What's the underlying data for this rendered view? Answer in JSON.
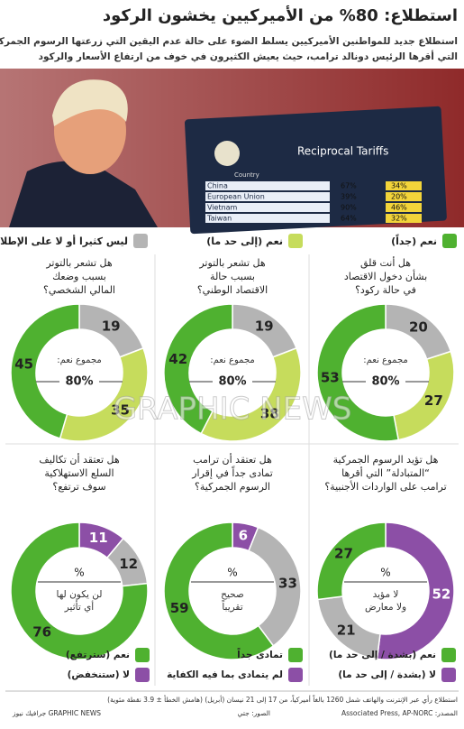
{
  "header": {
    "title": "استطلاع: 80% من الأميركيين يخشون الركود",
    "subtitle": [
      "استطلاع جديد للمواطنين الأميركيين يسلط الضوء على حالة عدم اليقين التي زرعتها الرسوم الجمركية المثيرة للجدل",
      "التي أقرها الرئيس دونالد ترامب، حيث يعيش الكثيرون في خوف من ارتفاع الأسعار والركود"
    ]
  },
  "photo": {
    "board_title": "Reciprocal Tariffs",
    "header": "Country",
    "rows": [
      [
        "China",
        "67%",
        "34%"
      ],
      [
        "European Union",
        "39%",
        "20%"
      ],
      [
        "Vietnam",
        "90%",
        "46%"
      ],
      [
        "Taiwan",
        "64%",
        "32%"
      ]
    ]
  },
  "watermark": "GRAPHIC NEWS",
  "legend_top": [
    {
      "label": "نعم (جداً)",
      "color": "#4fb130"
    },
    {
      "label": "نعم (إلى حد ما)",
      "color": "#c6dc5c"
    },
    {
      "label": "ليس كثيرا أو لا على الإطلاق",
      "color": "#b4b4b4"
    }
  ],
  "donuts": [
    {
      "question": [
        "هل أنت قلق",
        "بشأن دخول الاقتصاد",
        "في حالة ركود؟"
      ],
      "center": [
        "مجموع نعم:",
        "80%"
      ],
      "slices": [
        {
          "value": 20,
          "color": "#b4b4b4"
        },
        {
          "value": 27,
          "color": "#c6dc5c"
        },
        {
          "value": 53,
          "color": "#4fb130"
        }
      ]
    },
    {
      "question": [
        "هل تشعر بالتوتر",
        "بسبب حالة",
        "الاقتصاد الوطني؟"
      ],
      "center": [
        "مجموع نعم:",
        "80%"
      ],
      "slices": [
        {
          "value": 19,
          "color": "#b4b4b4"
        },
        {
          "value": 38,
          "color": "#c6dc5c"
        },
        {
          "value": 42,
          "color": "#4fb130"
        }
      ]
    },
    {
      "question": [
        "هل تشعر بالتوتر",
        "بسبب وضعك",
        "المالي الشخصي؟"
      ],
      "center": [
        "مجموع نعم:",
        "80%"
      ],
      "slices": [
        {
          "value": 19,
          "color": "#b4b4b4"
        },
        {
          "value": 35,
          "color": "#c6dc5c"
        },
        {
          "value": 45,
          "color": "#4fb130"
        }
      ]
    },
    {
      "question": [
        "هل تؤيد الرسوم الجمركية",
        "“المتبادلة” التي أقرها",
        "ترامب على الواردات الأجنبية؟"
      ],
      "center": [
        "%",
        "لا مؤيد",
        "ولا معارض"
      ],
      "slices": [
        {
          "value": 52,
          "color": "#8c4fa6"
        },
        {
          "value": 21,
          "color": "#b4b4b4"
        },
        {
          "value": 27,
          "color": "#4fb130"
        }
      ],
      "legend": [
        {
          "label": "نعم (بشدة / إلى حد ما)",
          "color": "#4fb130"
        },
        {
          "label": "لا (بشدة / إلى حد ما)",
          "color": "#8c4fa6"
        }
      ]
    },
    {
      "question": [
        "هل تعتقد أن ترامب",
        "تمادى جداً في إقرار",
        "الرسوم الجمركية؟"
      ],
      "center": [
        "%",
        "صحيح",
        "تقريباً"
      ],
      "slices": [
        {
          "value": 6,
          "color": "#8c4fa6"
        },
        {
          "value": 33,
          "color": "#b4b4b4"
        },
        {
          "value": 59,
          "color": "#4fb130"
        }
      ],
      "legend": [
        {
          "label": "تمادى جداً",
          "color": "#4fb130"
        },
        {
          "label": "لم يتمادى بما فيه الكفاية",
          "color": "#8c4fa6"
        }
      ]
    },
    {
      "question": [
        "هل تعتقد أن تكاليف",
        "السلع الاستهلاكية",
        "سوف ترتفع؟"
      ],
      "center": [
        "%",
        "لن يكون لها",
        "أي تأثير"
      ],
      "slices": [
        {
          "value": 11,
          "color": "#8c4fa6"
        },
        {
          "value": 12,
          "color": "#b4b4b4"
        },
        {
          "value": 76,
          "color": "#4fb130"
        }
      ],
      "legend": [
        {
          "label": "نعم (سترتفع)",
          "color": "#4fb130"
        },
        {
          "label": "لا (ستنخفض)",
          "color": "#8c4fa6"
        }
      ]
    }
  ],
  "footer": {
    "note": "استطلاع رأي عبر الإنترنت والهاتف شمل 1260 بالغاً أميركياً، من 17 إلى 21 نيسان (أبريل) (هامش الخطأ ± 3.9 نقطة مئوية)",
    "source": "المصدر: Associated Press, AP-NORC",
    "photos": "الصور: جتي",
    "brand": "GRAPHIC NEWS جرافيك نيوز"
  }
}
